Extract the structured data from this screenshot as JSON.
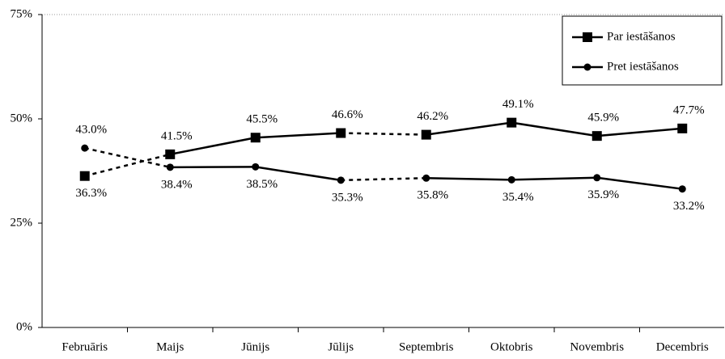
{
  "chart_data": {
    "type": "line",
    "categories": [
      "Februāris",
      "Maijs",
      "Jūnijs",
      "Jūlijs",
      "Septembris",
      "Oktobris",
      "Novembris",
      "Decembris"
    ],
    "series": [
      {
        "name": "Par iestāšanos",
        "color": "#000000",
        "marker": "square",
        "values": [
          36.3,
          41.5,
          45.5,
          46.6,
          46.2,
          49.1,
          45.9,
          47.7
        ],
        "value_labels": [
          "36.3%",
          "41.5%",
          "45.5%",
          "46.6%",
          "46.2%",
          "49.1%",
          "45.9%",
          "47.7%"
        ]
      },
      {
        "name": "Pret iestāšanos",
        "color": "#000000",
        "marker": "circle",
        "values": [
          43.0,
          38.4,
          38.5,
          35.3,
          35.8,
          35.4,
          35.9,
          33.2
        ],
        "value_labels": [
          "43.0%",
          "38.4%",
          "38.5%",
          "35.3%",
          "35.8%",
          "35.4%",
          "35.9%",
          "33.2%"
        ]
      }
    ],
    "dashed_segments": [
      0,
      3
    ],
    "ylim": [
      0,
      75
    ],
    "yticks": [
      {
        "value": 0,
        "label": "0%"
      },
      {
        "value": 25,
        "label": "25%"
      },
      {
        "value": 50,
        "label": "50%"
      },
      {
        "value": 75,
        "label": "75%"
      }
    ],
    "legend": "top-right"
  }
}
